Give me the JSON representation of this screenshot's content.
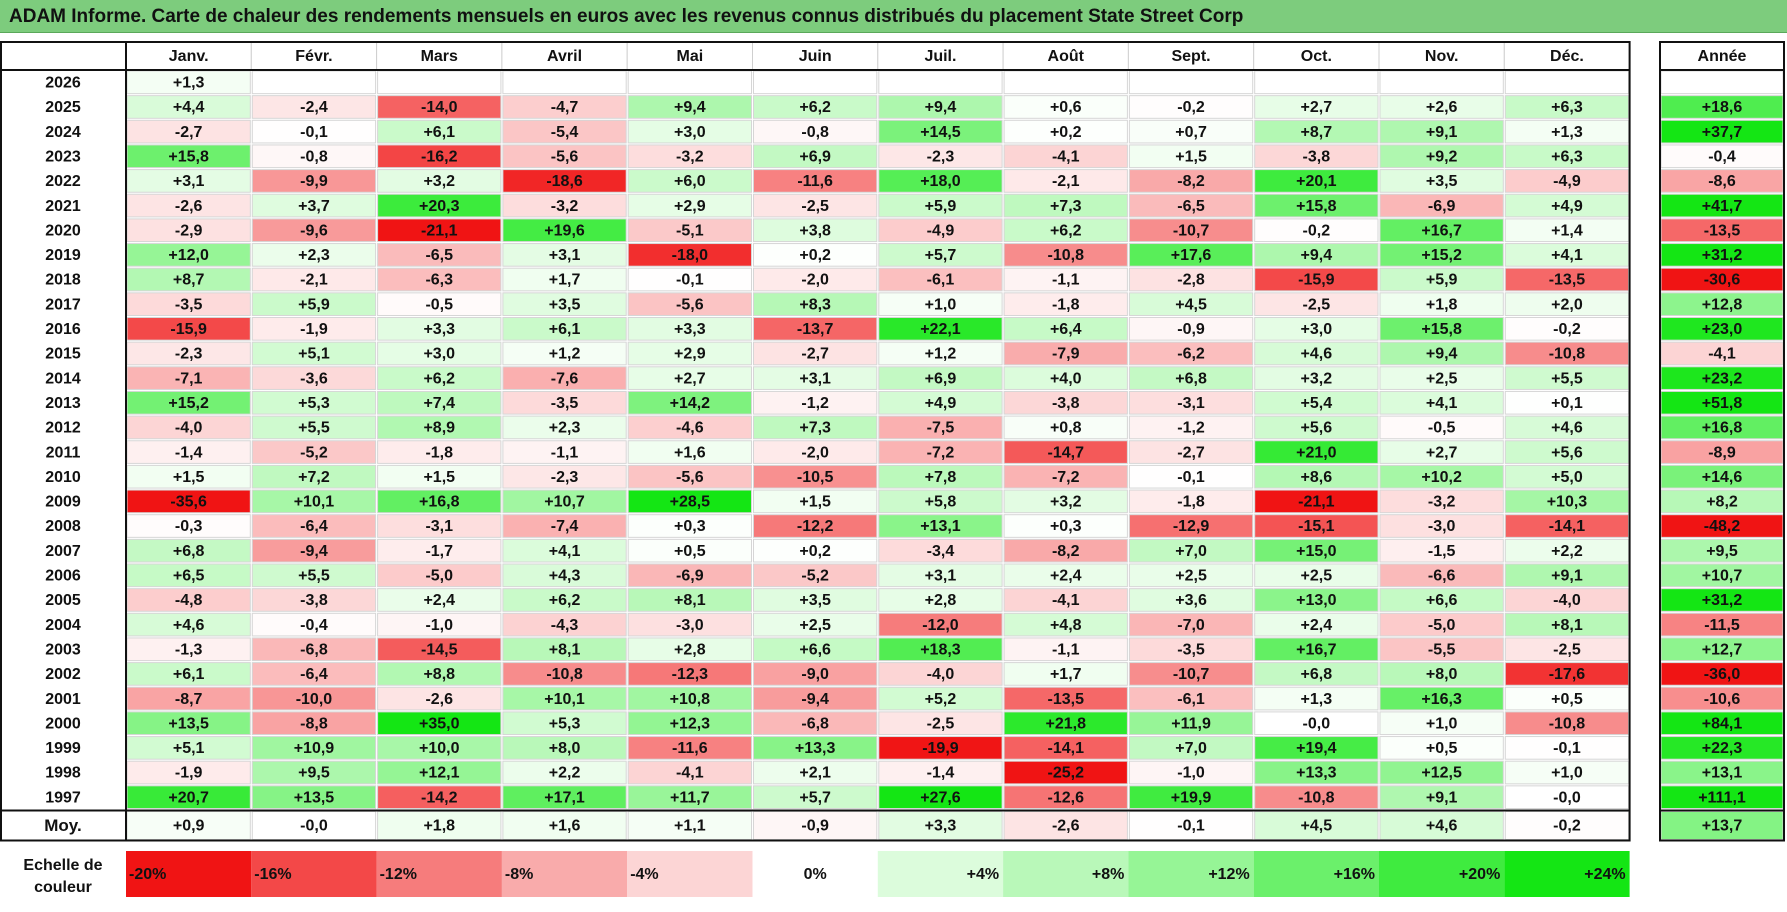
{
  "title": "ADAM Informe. Carte de chaleur des rendements mensuels en euros avec les revenus connus distribués du placement State Street Corp",
  "chart_data": {
    "type": "heatmap",
    "title": "ADAM Informe. Carte de chaleur des rendements mensuels en euros avec les revenus connus distribués du placement State Street Corp",
    "months": [
      "Janv.",
      "Févr.",
      "Mars",
      "Avril",
      "Mai",
      "Juin",
      "Juil.",
      "Août",
      "Sept.",
      "Oct.",
      "Nov.",
      "Déc."
    ],
    "year_header": "Année",
    "rows": [
      {
        "year": "2026",
        "values": [
          "+1,3",
          "",
          "",
          "",
          "",
          "",
          "",
          "",
          "",
          "",
          "",
          ""
        ],
        "annual": ""
      },
      {
        "year": "2025",
        "values": [
          "+4,4",
          "-2,4",
          "-14,0",
          "-4,7",
          "+9,4",
          "+6,2",
          "+9,4",
          "+0,6",
          "-0,2",
          "+2,7",
          "+2,6",
          "+6,3"
        ],
        "annual": "+18,6"
      },
      {
        "year": "2024",
        "values": [
          "-2,7",
          "-0,1",
          "+6,1",
          "-5,4",
          "+3,0",
          "-0,8",
          "+14,5",
          "+0,2",
          "+0,7",
          "+8,7",
          "+9,1",
          "+1,3"
        ],
        "annual": "+37,7"
      },
      {
        "year": "2023",
        "values": [
          "+15,8",
          "-0,8",
          "-16,2",
          "-5,6",
          "-3,2",
          "+6,9",
          "-2,3",
          "-4,1",
          "+1,5",
          "-3,8",
          "+9,2",
          "+6,3"
        ],
        "annual": "-0,4"
      },
      {
        "year": "2022",
        "values": [
          "+3,1",
          "-9,9",
          "+3,2",
          "-18,6",
          "+6,0",
          "-11,6",
          "+18,0",
          "-2,1",
          "-8,2",
          "+20,1",
          "+3,5",
          "-4,9"
        ],
        "annual": "-8,6"
      },
      {
        "year": "2021",
        "values": [
          "-2,6",
          "+3,7",
          "+20,3",
          "-3,2",
          "+2,9",
          "-2,5",
          "+5,9",
          "+7,3",
          "-6,5",
          "+15,8",
          "-6,9",
          "+4,9"
        ],
        "annual": "+41,7"
      },
      {
        "year": "2020",
        "values": [
          "-2,9",
          "-9,6",
          "-21,1",
          "+19,6",
          "-5,1",
          "+3,8",
          "-4,9",
          "+6,2",
          "-10,7",
          "-0,2",
          "+16,7",
          "+1,4"
        ],
        "annual": "-13,5"
      },
      {
        "year": "2019",
        "values": [
          "+12,0",
          "+2,3",
          "-6,5",
          "+3,1",
          "-18,0",
          "+0,2",
          "+5,7",
          "-10,8",
          "+17,6",
          "+9,4",
          "+15,2",
          "+4,1"
        ],
        "annual": "+31,2"
      },
      {
        "year": "2018",
        "values": [
          "+8,7",
          "-2,1",
          "-6,3",
          "+1,7",
          "-0,1",
          "-2,0",
          "-6,1",
          "-1,1",
          "-2,8",
          "-15,9",
          "+5,9",
          "-13,5"
        ],
        "annual": "-30,6"
      },
      {
        "year": "2017",
        "values": [
          "-3,5",
          "+5,9",
          "-0,5",
          "+3,5",
          "-5,6",
          "+8,3",
          "+1,0",
          "-1,8",
          "+4,5",
          "-2,5",
          "+1,8",
          "+2,0"
        ],
        "annual": "+12,8"
      },
      {
        "year": "2016",
        "values": [
          "-15,9",
          "-1,9",
          "+3,3",
          "+6,1",
          "+3,3",
          "-13,7",
          "+22,1",
          "+6,4",
          "-0,9",
          "+3,0",
          "+15,8",
          "-0,2"
        ],
        "annual": "+23,0"
      },
      {
        "year": "2015",
        "values": [
          "-2,3",
          "+5,1",
          "+3,0",
          "+1,2",
          "+2,9",
          "-2,7",
          "+1,2",
          "-7,9",
          "-6,2",
          "+4,6",
          "+9,4",
          "-10,8"
        ],
        "annual": "-4,1"
      },
      {
        "year": "2014",
        "values": [
          "-7,1",
          "-3,6",
          "+6,2",
          "-7,6",
          "+2,7",
          "+3,1",
          "+6,9",
          "+4,0",
          "+6,8",
          "+3,2",
          "+2,5",
          "+5,5"
        ],
        "annual": "+23,2"
      },
      {
        "year": "2013",
        "values": [
          "+15,2",
          "+5,3",
          "+7,4",
          "-3,5",
          "+14,2",
          "-1,2",
          "+4,9",
          "-3,8",
          "-3,1",
          "+5,4",
          "+4,1",
          "+0,1"
        ],
        "annual": "+51,8"
      },
      {
        "year": "2012",
        "values": [
          "-4,0",
          "+5,5",
          "+8,9",
          "+2,3",
          "-4,6",
          "+7,3",
          "-7,5",
          "+0,8",
          "-1,2",
          "+5,6",
          "-0,5",
          "+4,6"
        ],
        "annual": "+16,8"
      },
      {
        "year": "2011",
        "values": [
          "-1,4",
          "-5,2",
          "-1,8",
          "-1,1",
          "+1,6",
          "-2,0",
          "-7,2",
          "-14,7",
          "-2,7",
          "+21,0",
          "+2,7",
          "+5,6"
        ],
        "annual": "-8,9"
      },
      {
        "year": "2010",
        "values": [
          "+1,5",
          "+7,2",
          "+1,5",
          "-2,3",
          "-5,6",
          "-10,5",
          "+7,8",
          "-7,2",
          "-0,1",
          "+8,6",
          "+10,2",
          "+5,0"
        ],
        "annual": "+14,6"
      },
      {
        "year": "2009",
        "values": [
          "-35,6",
          "+10,1",
          "+16,8",
          "+10,7",
          "+28,5",
          "+1,5",
          "+5,8",
          "+3,2",
          "-1,8",
          "-21,1",
          "-3,2",
          "+10,3"
        ],
        "annual": "+8,2"
      },
      {
        "year": "2008",
        "values": [
          "-0,3",
          "-6,4",
          "-3,1",
          "-7,4",
          "+0,3",
          "-12,2",
          "+13,1",
          "+0,3",
          "-12,9",
          "-15,1",
          "-3,0",
          "-14,1"
        ],
        "annual": "-48,2"
      },
      {
        "year": "2007",
        "values": [
          "+6,8",
          "-9,4",
          "-1,7",
          "+4,1",
          "+0,5",
          "+0,2",
          "-3,4",
          "-8,2",
          "+7,0",
          "+15,0",
          "-1,5",
          "+2,2"
        ],
        "annual": "+9,5"
      },
      {
        "year": "2006",
        "values": [
          "+6,5",
          "+5,5",
          "-5,0",
          "+4,3",
          "-6,9",
          "-5,2",
          "+3,1",
          "+2,4",
          "+2,5",
          "+2,5",
          "-6,6",
          "+9,1"
        ],
        "annual": "+10,7"
      },
      {
        "year": "2005",
        "values": [
          "-4,8",
          "-3,8",
          "+2,4",
          "+6,2",
          "+8,1",
          "+3,5",
          "+2,8",
          "-4,1",
          "+3,6",
          "+13,0",
          "+6,6",
          "-4,0"
        ],
        "annual": "+31,2"
      },
      {
        "year": "2004",
        "values": [
          "+4,6",
          "-0,4",
          "-1,0",
          "-4,3",
          "-3,0",
          "+2,5",
          "-12,0",
          "+4,8",
          "-7,0",
          "+2,4",
          "-5,0",
          "+8,1"
        ],
        "annual": "-11,5"
      },
      {
        "year": "2003",
        "values": [
          "-1,3",
          "-6,8",
          "-14,5",
          "+8,1",
          "+2,8",
          "+6,6",
          "+18,3",
          "-1,1",
          "-3,5",
          "+16,7",
          "-5,5",
          "-2,5"
        ],
        "annual": "+12,7"
      },
      {
        "year": "2002",
        "values": [
          "+6,1",
          "-6,4",
          "+8,8",
          "-10,8",
          "-12,3",
          "-9,0",
          "-4,0",
          "+1,7",
          "-10,7",
          "+6,8",
          "+8,0",
          "-17,6"
        ],
        "annual": "-36,0"
      },
      {
        "year": "2001",
        "values": [
          "-8,7",
          "-10,0",
          "-2,6",
          "+10,1",
          "+10,8",
          "-9,4",
          "+5,2",
          "-13,5",
          "-6,1",
          "+1,3",
          "+16,3",
          "+0,5"
        ],
        "annual": "-10,6"
      },
      {
        "year": "2000",
        "values": [
          "+13,5",
          "-8,8",
          "+35,0",
          "+5,3",
          "+12,3",
          "-6,8",
          "-2,5",
          "+21,8",
          "+11,9",
          "-0,0",
          "+1,0",
          "-10,8"
        ],
        "annual": "+84,1"
      },
      {
        "year": "1999",
        "values": [
          "+5,1",
          "+10,9",
          "+10,0",
          "+8,0",
          "-11,6",
          "+13,3",
          "-19,9",
          "-14,1",
          "+7,0",
          "+19,4",
          "+0,5",
          "-0,1"
        ],
        "annual": "+22,3"
      },
      {
        "year": "1998",
        "values": [
          "-1,9",
          "+9,5",
          "+12,1",
          "+2,2",
          "-4,1",
          "+2,1",
          "-1,4",
          "-25,2",
          "-1,0",
          "+13,3",
          "+12,5",
          "+1,0"
        ],
        "annual": "+13,1"
      },
      {
        "year": "1997",
        "values": [
          "+20,7",
          "+13,5",
          "-14,2",
          "+17,1",
          "+11,7",
          "+5,7",
          "+27,6",
          "-12,6",
          "+19,9",
          "-10,8",
          "+9,1",
          "-0,0"
        ],
        "annual": "+111,1"
      }
    ],
    "average": {
      "label": "Moy.",
      "values": [
        "+0,9",
        "-0,0",
        "+1,8",
        "+1,6",
        "+1,1",
        "-0,9",
        "+3,3",
        "-2,6",
        "-0,1",
        "+4,5",
        "+4,6",
        "-0,2"
      ],
      "annual": "+13,7"
    },
    "legend": {
      "label": "Echelle de couleur",
      "steps": [
        {
          "text": "-20%",
          "value": -20
        },
        {
          "text": "-16%",
          "value": -16
        },
        {
          "text": "-12%",
          "value": -12
        },
        {
          "text": "-8%",
          "value": -8
        },
        {
          "text": "-4%",
          "value": -4
        },
        {
          "text": "0%",
          "value": 0
        },
        {
          "text": "+4%",
          "value": 4
        },
        {
          "text": "+8%",
          "value": 8
        },
        {
          "text": "+12%",
          "value": 12
        },
        {
          "text": "+16%",
          "value": 16
        },
        {
          "text": "+20%",
          "value": 20
        },
        {
          "text": "+24%",
          "value": 24
        }
      ]
    }
  }
}
